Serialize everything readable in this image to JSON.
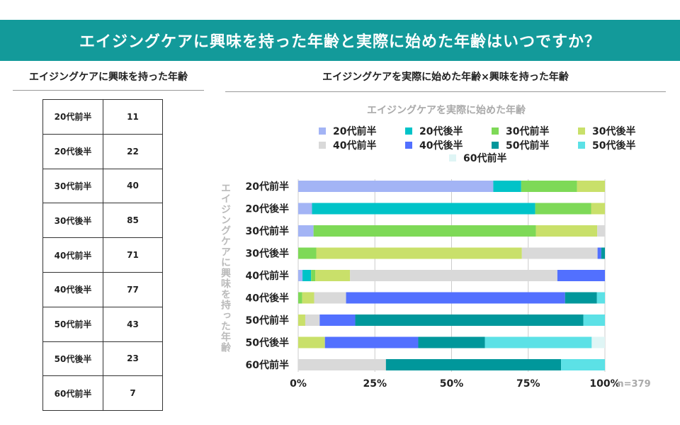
{
  "header": {
    "title": "エイジングケアに興味を持った年齢と実際に始めた年齢はいつですか？"
  },
  "left": {
    "title": "エイジングケアに興味を持った年齢",
    "rows": [
      {
        "label": "20代前半",
        "value": "11"
      },
      {
        "label": "20代後半",
        "value": "22"
      },
      {
        "label": "30代前半",
        "value": "40"
      },
      {
        "label": "30代後半",
        "value": "85"
      },
      {
        "label": "40代前半",
        "value": "71"
      },
      {
        "label": "40代後半",
        "value": "77"
      },
      {
        "label": "50代前半",
        "value": "43"
      },
      {
        "label": "50代後半",
        "value": "23"
      },
      {
        "label": "60代前半",
        "value": "7"
      }
    ]
  },
  "right": {
    "title": "エイジングケアを実際に始めた年齢×興味を持った年齢"
  },
  "chart_data": {
    "type": "bar",
    "orientation": "horizontal",
    "stacked": "percent",
    "legend_title": "エイジングケアを実際に始めた年齢",
    "legend_position": "top",
    "ylabel": "エイジングケアに興味を持った年齢",
    "note": "n=379",
    "categories": [
      "20代前半",
      "20代後半",
      "30代前半",
      "30代後半",
      "40代前半",
      "40代後半",
      "50代前半",
      "50代後半",
      "60代前半"
    ],
    "xticks": [
      "0%",
      "25%",
      "50%",
      "75%",
      "100%"
    ],
    "xlim": [
      0,
      100
    ],
    "grid": true,
    "series": [
      {
        "name": "20代前半",
        "color": "#a3b4f5",
        "values": [
          63.6,
          4.5,
          5.0,
          0,
          1.4,
          0,
          0,
          0,
          0
        ]
      },
      {
        "name": "20代後半",
        "color": "#00c3c8",
        "values": [
          9.1,
          72.7,
          0,
          0,
          2.8,
          0,
          0,
          0,
          0
        ]
      },
      {
        "name": "30代前半",
        "color": "#7ed957",
        "values": [
          18.2,
          18.2,
          72.5,
          5.9,
          1.4,
          1.3,
          0,
          0,
          0
        ]
      },
      {
        "name": "30代後半",
        "color": "#c9e06a",
        "values": [
          9.1,
          4.5,
          20.0,
          67.1,
          11.3,
          3.9,
          2.3,
          8.7,
          0
        ]
      },
      {
        "name": "40代前半",
        "color": "#d9d9d9",
        "values": [
          0,
          0,
          2.5,
          24.7,
          67.6,
          10.4,
          4.7,
          0,
          28.6
        ]
      },
      {
        "name": "40代後半",
        "color": "#5270ff",
        "values": [
          0,
          0,
          0,
          1.2,
          15.5,
          71.4,
          11.6,
          30.4,
          0
        ]
      },
      {
        "name": "50代前半",
        "color": "#00979b",
        "values": [
          0,
          0,
          0,
          1.2,
          0,
          10.4,
          74.4,
          21.7,
          57.1
        ]
      },
      {
        "name": "50代後半",
        "color": "#5ce1e6",
        "values": [
          0,
          0,
          0,
          0,
          0,
          2.6,
          7.0,
          34.8,
          14.3
        ]
      },
      {
        "name": "60代前半",
        "color": "#dff5f5",
        "values": [
          0,
          0,
          0,
          0,
          0,
          0,
          0,
          4.3,
          0
        ]
      }
    ]
  }
}
